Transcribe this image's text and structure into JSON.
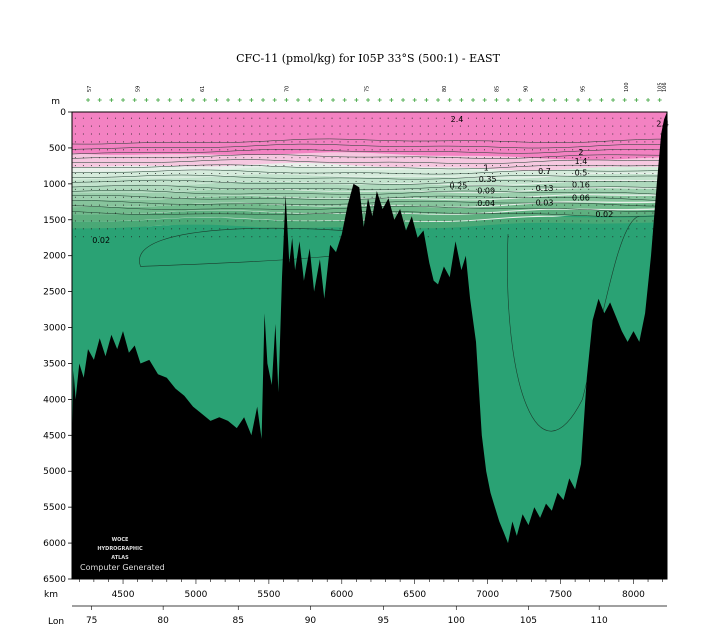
{
  "chart_data": {
    "type": "contour-section",
    "title": "CFC-11 (pmol/kg) for I05P 33°S (500:1) - EAST",
    "depth_unit_label": "m",
    "km_axis_label": "km",
    "lon_axis_label": "Lon",
    "depth_ticks": [
      "0",
      "500",
      "1000",
      "1500",
      "2000",
      "2500",
      "3000",
      "3500",
      "4000",
      "4500",
      "5000",
      "5500",
      "6000",
      "6500"
    ],
    "ylim": [
      0,
      6500
    ],
    "km_ticks": [
      "4500",
      "5000",
      "5500",
      "6000",
      "6500",
      "7000",
      "7500",
      "8000"
    ],
    "xlim_km": [
      4150,
      8230
    ],
    "lon_ticks": [
      "75",
      "80",
      "85",
      "90",
      "95",
      "100",
      "105",
      "110"
    ],
    "lon_tick_km": [
      4285,
      4775,
      5290,
      5785,
      6285,
      6785,
      7280,
      7765
    ],
    "station_labels": [
      {
        "label": "57",
        "km": 4265
      },
      {
        "label": "59",
        "km": 4600
      },
      {
        "label": "61",
        "km": 5040
      },
      {
        "label": "70",
        "km": 5620
      },
      {
        "label": "75",
        "km": 6170
      },
      {
        "label": "80",
        "km": 6700
      },
      {
        "label": "85",
        "km": 7060
      },
      {
        "label": "90",
        "km": 7260
      },
      {
        "label": "95",
        "km": 7650
      },
      {
        "label": "100",
        "km": 7950
      },
      {
        "label": "105",
        "km": 8180
      },
      {
        "label": "106",
        "km": 8210
      }
    ],
    "contour_levels": [
      0.02,
      0.03,
      0.04,
      0.06,
      0.09,
      0.13,
      0.16,
      0.25,
      0.35,
      0.5,
      0.7,
      1,
      1.4,
      2,
      2.4
    ],
    "contour_labels": [
      {
        "text": "2.4",
        "km": 6790,
        "depth": 100
      },
      {
        "text": "2.4",
        "km": 8200,
        "depth": 160
      },
      {
        "text": "2",
        "km": 7640,
        "depth": 560
      },
      {
        "text": "1.4",
        "km": 7640,
        "depth": 680
      },
      {
        "text": "1",
        "km": 6990,
        "depth": 770
      },
      {
        "text": "0.7",
        "km": 7390,
        "depth": 820
      },
      {
        "text": "0.5",
        "km": 7640,
        "depth": 840
      },
      {
        "text": "0.35",
        "km": 7000,
        "depth": 930
      },
      {
        "text": "0.25",
        "km": 6800,
        "depth": 1020
      },
      {
        "text": "0.16",
        "km": 7640,
        "depth": 1010
      },
      {
        "text": "0.09",
        "km": 6990,
        "depth": 1090
      },
      {
        "text": "0.13",
        "km": 7390,
        "depth": 1060
      },
      {
        "text": "0.06",
        "km": 7640,
        "depth": 1190
      },
      {
        "text": "0.04",
        "km": 6990,
        "depth": 1270
      },
      {
        "text": "0.03",
        "km": 7390,
        "depth": 1260
      },
      {
        "text": "0.02",
        "km": 7800,
        "depth": 1420
      },
      {
        "text": "0.02",
        "km": 4350,
        "depth": 1780
      }
    ],
    "colors": {
      "high": "#f382c2",
      "mid_pink": "#f6c8e0",
      "light": "#e8f0ea",
      "deep_green": "#2aa274",
      "bathymetry": "#000000",
      "station_marker": "#3aa23a"
    },
    "logo_lines": [
      "WOCE",
      "HYDROGRAPHIC",
      "ATLAS"
    ],
    "credit": "Computer Generated"
  }
}
